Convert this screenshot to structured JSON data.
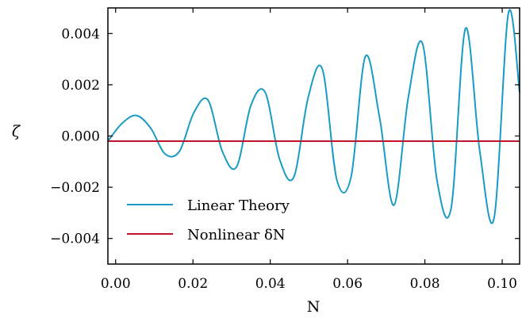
{
  "chart_data": {
    "type": "line",
    "xlabel": "N",
    "ylabel": "ζ",
    "xlim": [
      -0.002,
      0.1045
    ],
    "ylim": [
      -0.005,
      0.005
    ],
    "xticks": [
      0.0,
      0.02,
      0.04,
      0.06,
      0.08,
      0.1
    ],
    "xtick_labels": [
      "0.00",
      "0.02",
      "0.04",
      "0.06",
      "0.08",
      "0.10"
    ],
    "yticks": [
      -0.004,
      -0.002,
      0.0,
      0.002,
      0.004
    ],
    "ytick_labels": [
      "−0.004",
      "−0.002",
      "0.000",
      "0.002",
      "0.004"
    ],
    "grid": false,
    "legend_position": "bottom-left",
    "series": [
      {
        "name": "Linear Theory",
        "color": "#1a9bc4",
        "x": [
          -0.002,
          0.0017,
          0.0054,
          0.0091,
          0.0128,
          0.0165,
          0.0202,
          0.0239,
          0.0276,
          0.0313,
          0.035,
          0.0387,
          0.0424,
          0.0461,
          0.0498,
          0.0535,
          0.0572,
          0.0609,
          0.0646,
          0.0683,
          0.072,
          0.0757,
          0.0794,
          0.0831,
          0.0868,
          0.0905,
          0.0942,
          0.0979,
          0.1016,
          0.1045
        ],
        "y": [
          -0.0002,
          0.0005,
          0.0008,
          0.0003,
          -0.0007,
          -0.0006,
          0.0009,
          0.0014,
          -0.0006,
          -0.0012,
          0.0012,
          0.0017,
          -0.0009,
          -0.0016,
          0.0015,
          0.0026,
          -0.0017,
          -0.0016,
          0.0031,
          0.0007,
          -0.0027,
          0.0015,
          0.0036,
          -0.0017,
          -0.0028,
          0.0042,
          -0.0006,
          -0.0032,
          0.0048,
          0.0017
        ]
      },
      {
        "name": "Nonlinear δN",
        "color": "#c0132e",
        "x": [
          -0.002,
          0.1045
        ],
        "y": [
          -0.0002,
          -0.0002
        ]
      }
    ]
  }
}
